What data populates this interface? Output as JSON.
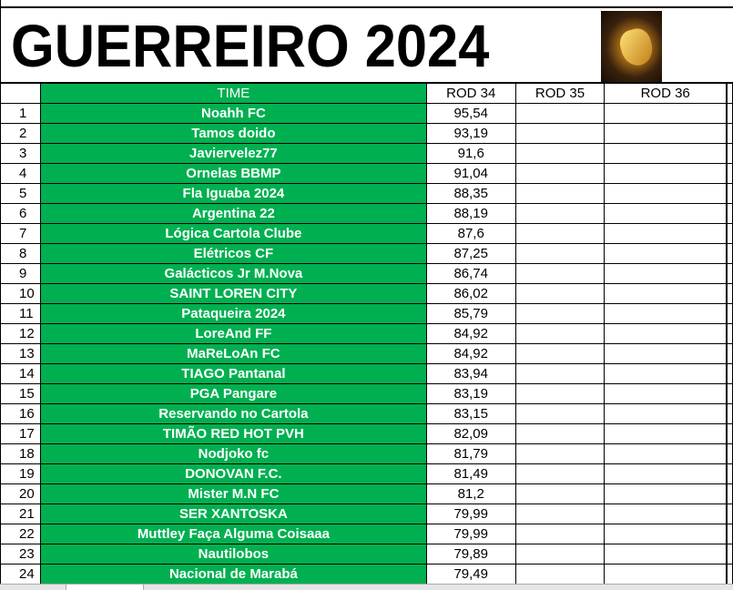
{
  "sheet": {
    "title": "GUERREIRO 2024",
    "logo": "warrior-shield-image"
  },
  "columns": {
    "time": "TIME",
    "rod34": "ROD 34",
    "rod35": "ROD 35",
    "rod36": "ROD 36"
  },
  "rows": [
    {
      "n": "1",
      "team": "Noahh FC",
      "rod34": "95,54"
    },
    {
      "n": "2",
      "team": "Tamos doido",
      "rod34": "93,19"
    },
    {
      "n": "3",
      "team": "Javiervelez77",
      "rod34": "91,6"
    },
    {
      "n": "4",
      "team": "Ornelas BBMP",
      "rod34": "91,04"
    },
    {
      "n": "5",
      "team": "Fla Iguaba 2024",
      "rod34": "88,35"
    },
    {
      "n": "6",
      "team": "Argentina 22",
      "rod34": "88,19"
    },
    {
      "n": "7",
      "team": "Lógica Cartola Clube",
      "rod34": "87,6"
    },
    {
      "n": "8",
      "team": "Elétricos CF",
      "rod34": "87,25"
    },
    {
      "n": "9",
      "team": "Galácticos Jr M.Nova",
      "rod34": "86,74"
    },
    {
      "n": "10",
      "team": "SAINT LOREN CITY",
      "rod34": "86,02"
    },
    {
      "n": "11",
      "team": "Pataqueira 2024",
      "rod34": "85,79"
    },
    {
      "n": "12",
      "team": "LoreAnd FF",
      "rod34": "84,92"
    },
    {
      "n": "13",
      "team": "MaReLoAn FC",
      "rod34": "84,92"
    },
    {
      "n": "14",
      "team": "TIAGO Pantanal",
      "rod34": "83,94"
    },
    {
      "n": "15",
      "team": "PGA Pangare",
      "rod34": "83,19"
    },
    {
      "n": "16",
      "team": "Reservando no Cartola",
      "rod34": "83,15"
    },
    {
      "n": "17",
      "team": "TIMÃO RED HOT PVH",
      "rod34": "82,09"
    },
    {
      "n": "18",
      "team": "Nodjoko fc",
      "rod34": "81,79"
    },
    {
      "n": "19",
      "team": "DONOVAN F.C.",
      "rod34": "81,49"
    },
    {
      "n": "20",
      "team": "Mister M.N FC",
      "rod34": "81,2"
    },
    {
      "n": "21",
      "team": "SER XANTOSKA",
      "rod34": "79,99"
    },
    {
      "n": "22",
      "team": "Muttley Faça Alguma Coisaaa",
      "rod34": "79,99"
    },
    {
      "n": "23",
      "team": "Nautilobos",
      "rod34": "79,89"
    },
    {
      "n": "24",
      "team": "Nacional de Marabá",
      "rod34": "79,49"
    }
  ],
  "colors": {
    "team_fill": "#00b050",
    "team_text": "#ffffff"
  }
}
